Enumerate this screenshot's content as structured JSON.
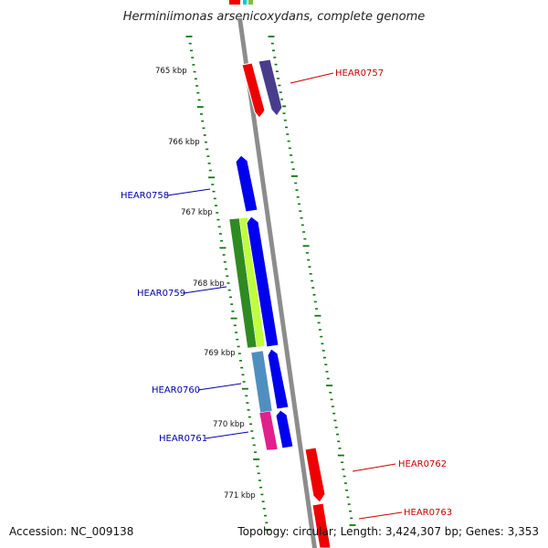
{
  "title": "Herminiimonas arsenicoxydans, complete genome",
  "footer": {
    "accession": "Accession: NC_009138",
    "summary": "Topology: circular; Length: 3,424,307 bp; Genes: 3,353"
  },
  "colors": {
    "backbone": "#8c8c8c",
    "tick": "#117711",
    "forward_label": "#cc0000",
    "reverse_label": "#0000aa"
  },
  "ticks": {
    "major_labels": [
      "765 kbp",
      "766 kbp",
      "767 kbp",
      "768 kbp",
      "769 kbp",
      "770 kbp",
      "771 kbp"
    ]
  },
  "genes": [
    {
      "name": "HEAR0757",
      "strand": "+",
      "color": "#ee0000"
    },
    {
      "name": "HEAR0758",
      "strand": "-",
      "color": "#0000ee"
    },
    {
      "name": "HEAR0759",
      "strand": "-",
      "color": "#0000ee"
    },
    {
      "name": "HEAR0760",
      "strand": "-",
      "color": "#0000ee"
    },
    {
      "name": "HEAR0761",
      "strand": "-",
      "color": "#0000ee"
    },
    {
      "name": "HEAR0762",
      "strand": "+",
      "color": "#ee0000"
    },
    {
      "name": "HEAR0763",
      "strand": "+",
      "color": "#ee0000"
    }
  ],
  "features": [
    {
      "color": "#4a3c8c"
    },
    {
      "color": "#2e8b22"
    },
    {
      "color": "#bfff3c"
    },
    {
      "color": "#4f8fc0"
    },
    {
      "color": "#e0208c"
    }
  ]
}
